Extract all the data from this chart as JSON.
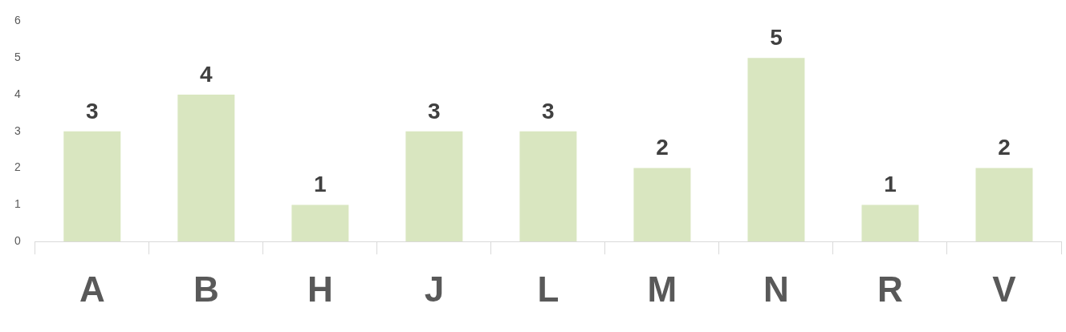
{
  "chart_data": {
    "type": "bar",
    "categories": [
      "A",
      "B",
      "H",
      "J",
      "L",
      "M",
      "N",
      "R",
      "V"
    ],
    "values": [
      3,
      4,
      1,
      3,
      3,
      2,
      5,
      1,
      2
    ],
    "color": "#d9e6c0",
    "ylim": [
      0,
      6
    ],
    "yticks": [
      0,
      1,
      2,
      3,
      4,
      5,
      6
    ],
    "grid": false,
    "legend": false,
    "data_labels": true
  }
}
